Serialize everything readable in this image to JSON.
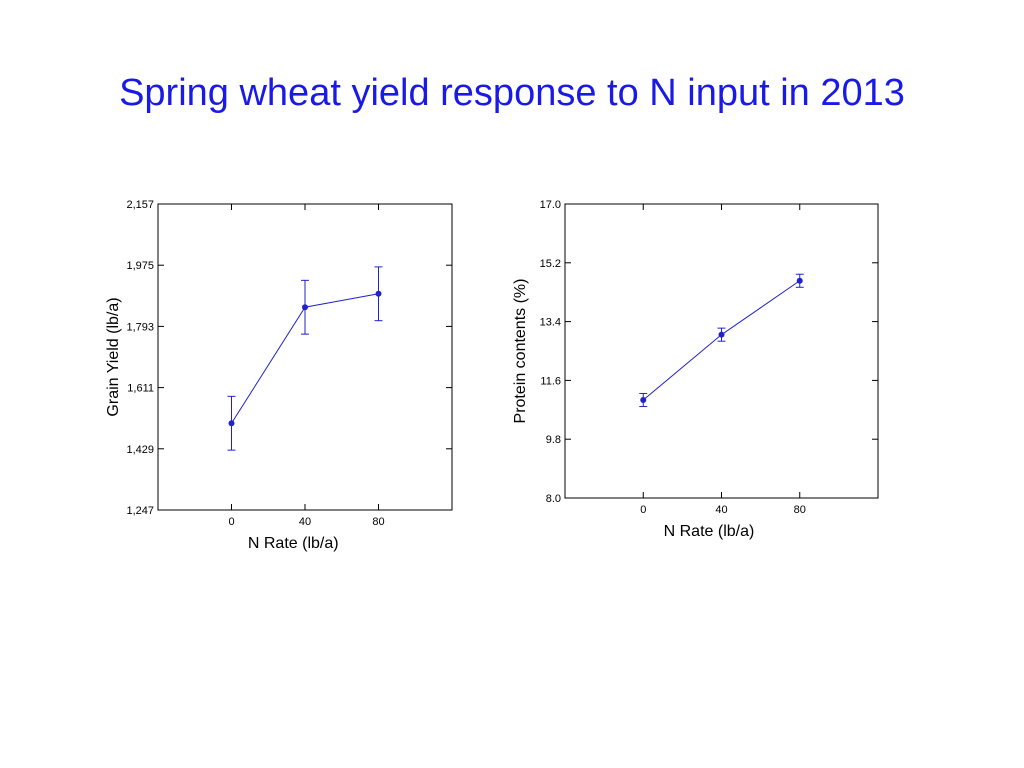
{
  "title": "Spring wheat yield response to N input in 2013",
  "colors": {
    "title": "#1a1ae6",
    "series": "#2222cc"
  },
  "chart_data": [
    {
      "type": "line",
      "xlabel": "N Rate (lb/a)",
      "ylabel": "Grain Yield (lb/a)",
      "x": [
        0,
        40,
        80
      ],
      "x_tick_labels": [
        "0",
        "40",
        "80"
      ],
      "xlim": [
        -40,
        120
      ],
      "ylim": [
        1247,
        2157
      ],
      "y_tick_labels": [
        "2,157",
        "1,975",
        "1,793",
        "1,611",
        "1,429",
        "1,247"
      ],
      "y_tick_values": [
        2157,
        1975,
        1793,
        1611,
        1429,
        1247
      ],
      "series": [
        {
          "values": [
            1505,
            1850,
            1890
          ],
          "error": [
            80,
            80,
            80
          ]
        }
      ]
    },
    {
      "type": "line",
      "xlabel": "N Rate (lb/a)",
      "ylabel": "Protein contents (%)",
      "x": [
        0,
        40,
        80
      ],
      "x_tick_labels": [
        "0",
        "40",
        "80"
      ],
      "xlim": [
        -40,
        120
      ],
      "ylim": [
        8.0,
        17.0
      ],
      "y_tick_labels": [
        "17.0",
        "15.2",
        "13.4",
        "11.6",
        "9.8",
        "8.0"
      ],
      "y_tick_values": [
        17.0,
        15.2,
        13.4,
        11.6,
        9.8,
        8.0
      ],
      "series": [
        {
          "values": [
            11.0,
            13.0,
            14.65
          ],
          "error": [
            0.2,
            0.2,
            0.2
          ]
        }
      ]
    }
  ]
}
